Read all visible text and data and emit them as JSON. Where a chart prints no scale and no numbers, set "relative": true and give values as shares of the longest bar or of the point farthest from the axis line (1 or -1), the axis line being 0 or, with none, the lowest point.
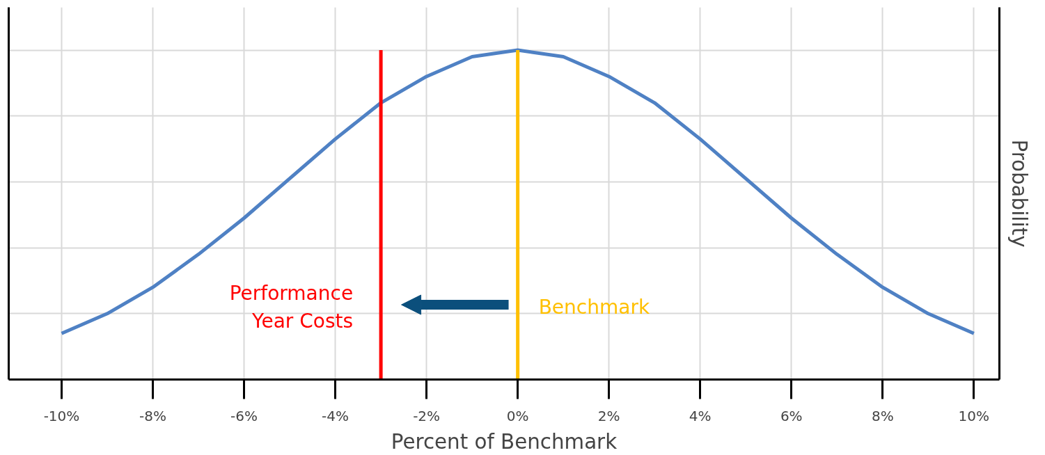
{
  "chart_data": {
    "type": "line",
    "relative": true,
    "xlabel": "Percent of Benchmark",
    "ylabel": "Probability",
    "x": [
      -10,
      -9,
      -8,
      -7,
      -6,
      -5,
      -4,
      -3,
      -2,
      -1,
      0,
      1,
      2,
      3,
      4,
      5,
      6,
      7,
      8,
      9,
      10
    ],
    "series": [
      {
        "color": "#4f81c4",
        "values": [
          0.14,
          0.2,
          0.28,
          0.38,
          0.49,
          0.61,
          0.73,
          0.84,
          0.92,
          0.98,
          1,
          0.98,
          0.92,
          0.84,
          0.73,
          0.61,
          0.49,
          0.38,
          0.28,
          0.2,
          0.14
        ]
      }
    ],
    "xlim": [
      -11.16,
      10.56
    ],
    "xticks": [
      {
        "value": -10,
        "label": "-10%"
      },
      {
        "value": -8,
        "label": "-8%"
      },
      {
        "value": -6,
        "label": "-6%"
      },
      {
        "value": -4,
        "label": "-4%"
      },
      {
        "value": -2,
        "label": "-2%"
      },
      {
        "value": 0,
        "label": "0%"
      },
      {
        "value": 2,
        "label": "2%"
      },
      {
        "value": 4,
        "label": "4%"
      },
      {
        "value": 6,
        "label": "6%"
      },
      {
        "value": 8,
        "label": "8%"
      },
      {
        "value": 10,
        "label": "10%"
      }
    ],
    "ref_lines": [
      {
        "axis": "x",
        "value": -3,
        "label": "Performance\nYear Costs",
        "color": "#ff0000"
      },
      {
        "axis": "x",
        "value": 0,
        "label": "Benchmark",
        "color": "#ffc000"
      }
    ],
    "grid": true,
    "marker": "none",
    "line_style": "solid"
  }
}
